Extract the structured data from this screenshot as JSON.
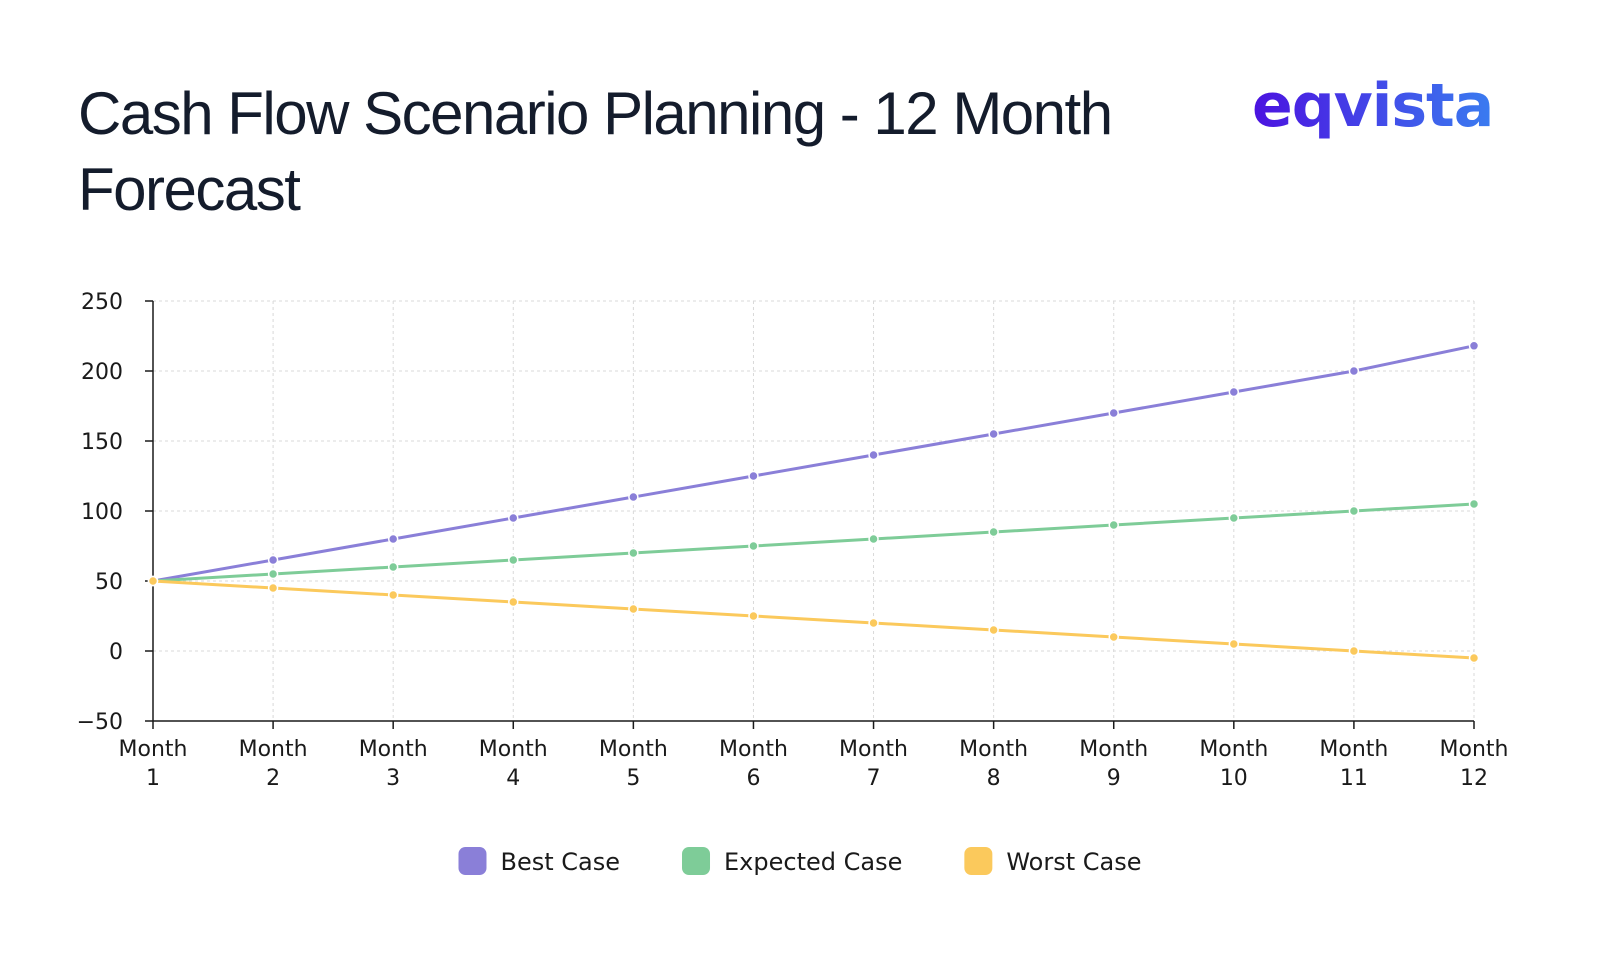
{
  "brand": {
    "name": "eqvista",
    "colors": [
      "#4b12e0",
      "#3a7cf0"
    ]
  },
  "chart_data": {
    "type": "line",
    "title": "Cash Flow Scenario Planning - 12 Month Forecast",
    "xlabel": "",
    "ylabel": "",
    "categories": [
      [
        "Month",
        "1"
      ],
      [
        "Month",
        "2"
      ],
      [
        "Month",
        "3"
      ],
      [
        "Month",
        "4"
      ],
      [
        "Month",
        "5"
      ],
      [
        "Month",
        "6"
      ],
      [
        "Month",
        "7"
      ],
      [
        "Month",
        "8"
      ],
      [
        "Month",
        "9"
      ],
      [
        "Month",
        "10"
      ],
      [
        "Month",
        "11"
      ],
      [
        "Month",
        "12"
      ]
    ],
    "ylim": [
      -50,
      250
    ],
    "yticks": [
      -50,
      0,
      50,
      100,
      150,
      200,
      250
    ],
    "grid": true,
    "legend_position": "bottom-center",
    "series": [
      {
        "name": "Best Case",
        "color": "#8a7fd8",
        "values": [
          50,
          65,
          80,
          95,
          110,
          125,
          140,
          155,
          170,
          185,
          200,
          218
        ]
      },
      {
        "name": "Expected Case",
        "color": "#7ecc98",
        "values": [
          50,
          55,
          60,
          65,
          70,
          75,
          80,
          85,
          90,
          95,
          100,
          105
        ]
      },
      {
        "name": "Worst Case",
        "color": "#fbc95c",
        "values": [
          50,
          45,
          40,
          35,
          30,
          25,
          20,
          15,
          10,
          5,
          0,
          -5
        ]
      }
    ]
  }
}
